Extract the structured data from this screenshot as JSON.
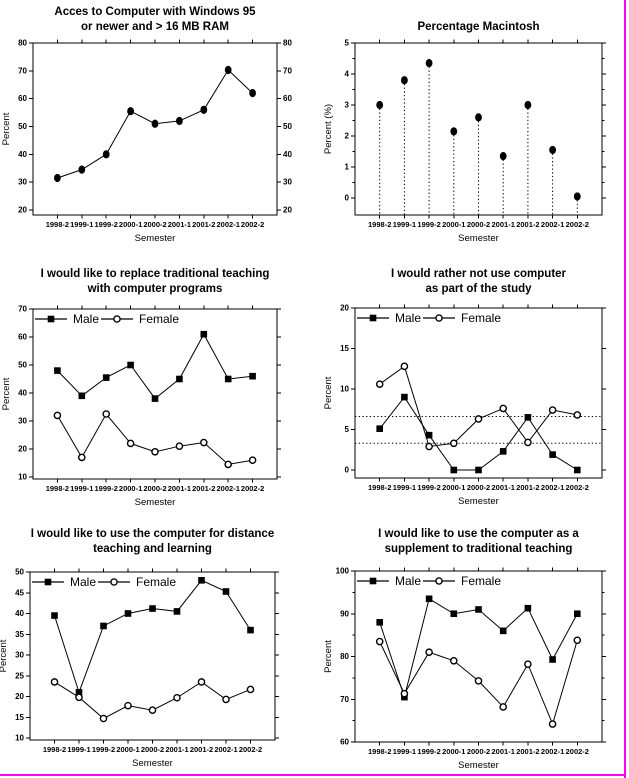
{
  "page": {
    "background": "#ffffff",
    "ink_color": "#000000",
    "border_color": "#ff00ff"
  },
  "chart_data": [
    {
      "id": "windows-access",
      "type": "line",
      "title_lines": [
        "Acces to Computer with Windows 95",
        "or newer and > 16 MB RAM"
      ],
      "xlabel": "Semester",
      "ylabel": "Percent",
      "categories": [
        "1998-2",
        "1999-1",
        "1999-2",
        "2000-1",
        "2000-2",
        "2001-1",
        "2001-2",
        "2002-1",
        "2002-2"
      ],
      "ylim": [
        20,
        80
      ],
      "yticks": [
        20,
        30,
        40,
        50,
        60,
        70,
        80
      ],
      "right_axis_labels": true,
      "legend": false,
      "series": [
        {
          "marker": "circle-filled",
          "values": [
            31.5,
            34.5,
            40,
            55.5,
            51,
            52,
            56,
            70.3,
            62
          ]
        }
      ]
    },
    {
      "id": "percentage-macintosh",
      "type": "stem",
      "title_lines": [
        "Percentage Macintosh"
      ],
      "xlabel": "Semester",
      "ylabel": "Percent (%)",
      "categories": [
        "1998-2",
        "1999-1",
        "1999-2",
        "2000-1",
        "2000-2",
        "2001-1",
        "2001-2",
        "2002-1",
        "2002-2"
      ],
      "ylim": [
        0,
        5
      ],
      "yticks": [
        0,
        1,
        2,
        3,
        4,
        5
      ],
      "y_minor_step": 0.5,
      "right_axis_labels": false,
      "legend": false,
      "series": [
        {
          "marker": "circle-filled",
          "values": [
            3.0,
            3.8,
            4.35,
            2.15,
            2.6,
            1.35,
            3.0,
            1.55,
            0.05
          ]
        }
      ]
    },
    {
      "id": "replace-traditional-teaching",
      "type": "line",
      "title_lines": [
        "I would like to replace traditional teaching",
        "with computer programs"
      ],
      "xlabel": "Semester",
      "ylabel": "Percent",
      "categories": [
        "1998-2",
        "1999-1",
        "1999-2",
        "2000-1",
        "2000-2",
        "2001-1",
        "2001-2",
        "2002-1",
        "2002-2"
      ],
      "ylim": [
        10,
        70
      ],
      "yticks": [
        10,
        20,
        30,
        40,
        50,
        60,
        70
      ],
      "right_axis_labels": false,
      "legend": true,
      "series": [
        {
          "name": "Male",
          "marker": "square-filled",
          "values": [
            48,
            39,
            45.5,
            50,
            38,
            45,
            61,
            45,
            46
          ]
        },
        {
          "name": "Female",
          "marker": "circle-open",
          "values": [
            32,
            17,
            32.5,
            22,
            19,
            21,
            22.3,
            14.5,
            16
          ]
        }
      ]
    },
    {
      "id": "rather-not-use-computer",
      "type": "line",
      "title_lines": [
        "I would rather not use computer",
        "as part of the study"
      ],
      "xlabel": "Semester",
      "ylabel": "Percent",
      "categories": [
        "1998-2",
        "1999-1",
        "1999-2",
        "2000-1",
        "2000-2",
        "2001-1",
        "2001-2",
        "2002-1",
        "2002-2"
      ],
      "ylim": [
        0,
        20
      ],
      "yticks": [
        0,
        5,
        10,
        15,
        20
      ],
      "reference_lines": [
        6.6,
        3.3
      ],
      "right_axis_labels": false,
      "legend": true,
      "series": [
        {
          "name": "Male",
          "marker": "square-filled",
          "values": [
            5.1,
            9,
            4.3,
            0,
            0,
            2.3,
            6.5,
            1.9,
            0
          ]
        },
        {
          "name": "Female",
          "marker": "circle-open",
          "values": [
            10.6,
            12.8,
            2.9,
            3.3,
            6.3,
            7.6,
            3.4,
            7.4,
            6.8
          ]
        }
      ]
    },
    {
      "id": "distance-teaching",
      "type": "line",
      "title_lines": [
        "I would like to use the computer for distance",
        "teaching and learning"
      ],
      "xlabel": "Semester",
      "ylabel": "Percent",
      "categories": [
        "1998-2",
        "1999-1",
        "1999-2",
        "2000-1",
        "2000-2",
        "2001-1",
        "2001-2",
        "2002-1",
        "2002-2"
      ],
      "ylim": [
        10,
        50
      ],
      "yticks": [
        10,
        15,
        20,
        25,
        30,
        35,
        40,
        45,
        50
      ],
      "right_axis_labels": false,
      "legend": true,
      "series": [
        {
          "name": "Male",
          "marker": "square-filled",
          "values": [
            39.5,
            21,
            37,
            40,
            41.2,
            40.5,
            48,
            45.3,
            36
          ]
        },
        {
          "name": "Female",
          "marker": "circle-open",
          "values": [
            23.5,
            19.8,
            14.7,
            17.8,
            16.7,
            19.7,
            23.5,
            19.3,
            21.7
          ]
        }
      ]
    },
    {
      "id": "supplement-traditional-teaching",
      "type": "line",
      "title_lines": [
        "I would like to use the computer as a",
        "supplement to traditional teaching"
      ],
      "xlabel": "Semester",
      "ylabel": "Percent",
      "categories": [
        "1998-2",
        "1999-1",
        "1999-2",
        "2000-1",
        "2000-2",
        "2001-1",
        "2001-2",
        "2002-1",
        "2002-2"
      ],
      "ylim": [
        60,
        100
      ],
      "yticks": [
        60,
        70,
        80,
        90,
        100
      ],
      "y_minor_step": 5,
      "right_axis_labels": false,
      "legend": true,
      "series": [
        {
          "name": "Male",
          "marker": "square-filled",
          "values": [
            88,
            70.5,
            93.5,
            90,
            91,
            86,
            91.3,
            79.3,
            90
          ]
        },
        {
          "name": "Female",
          "marker": "circle-open",
          "values": [
            83.5,
            71.3,
            81,
            79,
            74.3,
            68.2,
            78.2,
            64.2,
            83.8
          ]
        }
      ]
    }
  ]
}
